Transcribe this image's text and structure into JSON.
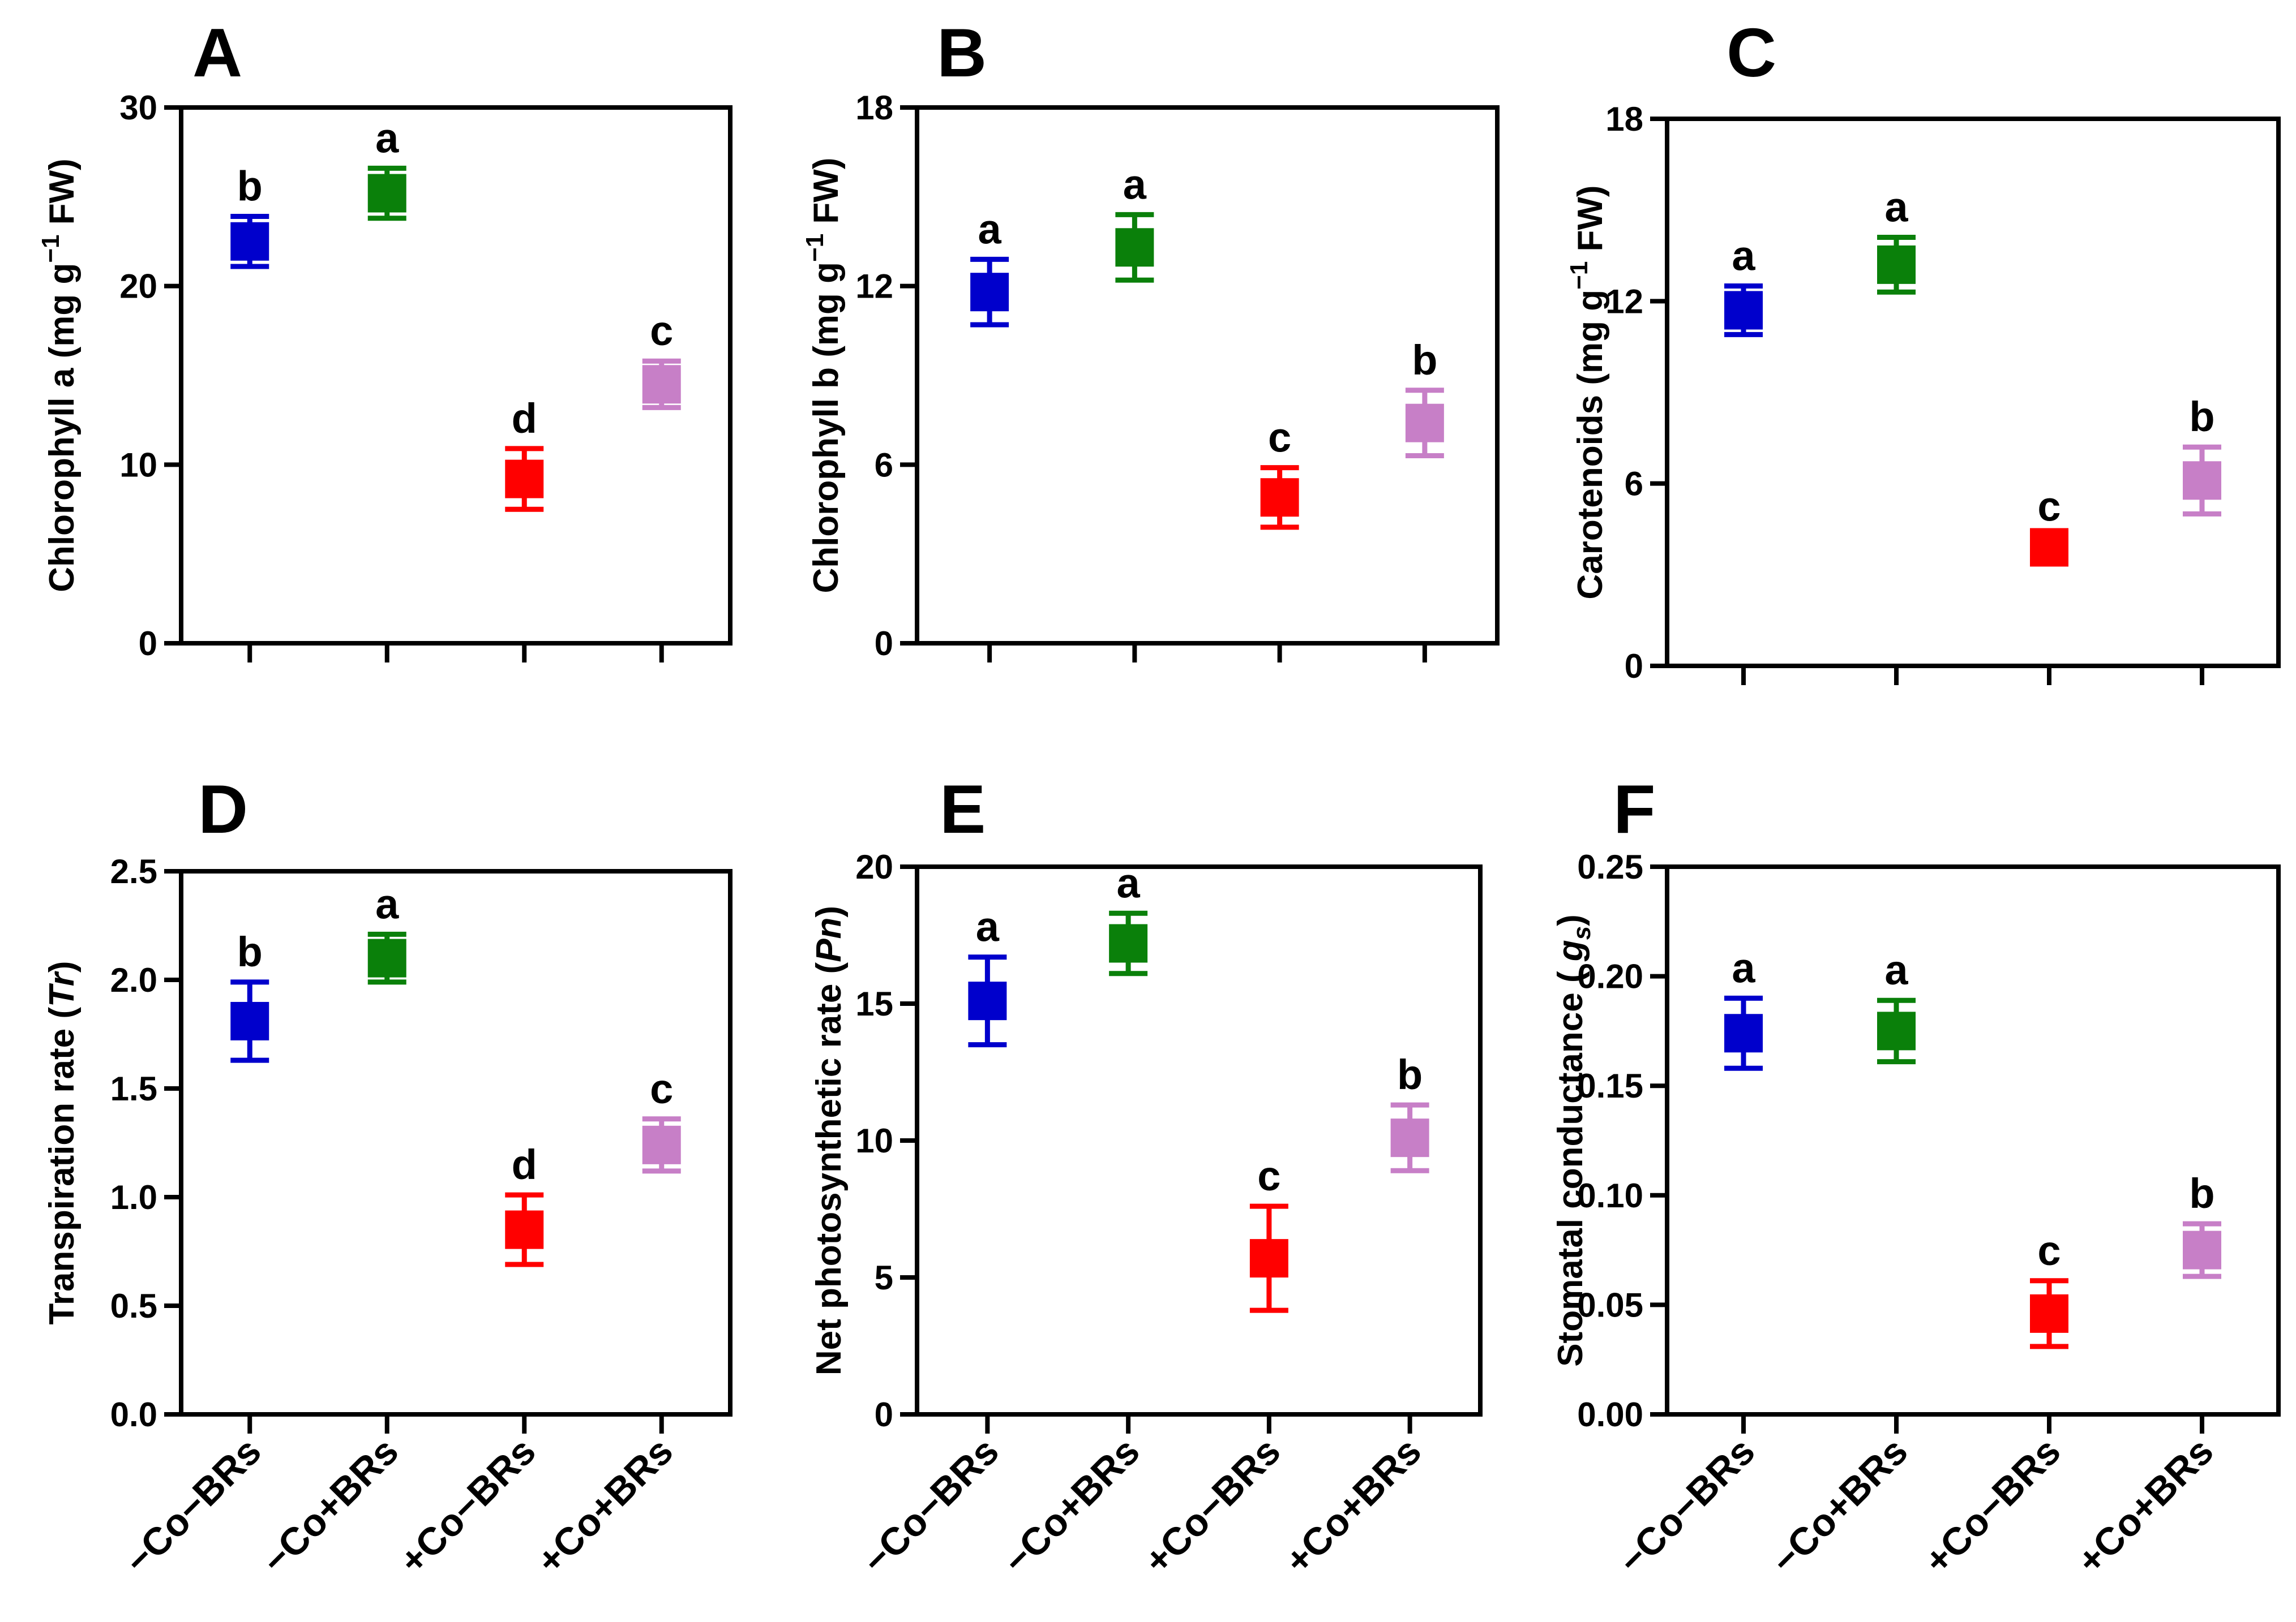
{
  "colors": {
    "-Co-BRs": "#0000cc",
    "-Co+BRs": "#0a800a",
    "+Co-BRs": "#ff0000",
    "+Co+BRs": "#c77fc7"
  },
  "chart_data": [
    {
      "panel": "A",
      "type": "scatter",
      "ylabel": "Chlorophyll a (mg g⁻¹ FW)",
      "ylim": [
        0,
        30
      ],
      "yticks": [
        "0",
        "10",
        "20",
        "30"
      ],
      "categories": [
        "−Co−BRs",
        "−Co+BRs",
        "+Co−BRs",
        "+Co+BRs"
      ],
      "show_category_labels": false,
      "values": [
        22.5,
        25.2,
        9.2,
        14.5
      ],
      "errors": [
        1.4,
        1.4,
        1.7,
        1.3
      ],
      "letters": [
        "b",
        "a",
        "d",
        "c"
      ]
    },
    {
      "panel": "B",
      "type": "scatter",
      "ylabel": "Chlorophyll b (mg g⁻¹ FW)",
      "ylim": [
        0,
        18
      ],
      "yticks": [
        "0",
        "6",
        "12",
        "18"
      ],
      "categories": [
        "−Co−BRs",
        "−Co+BRs",
        "+Co−BRs",
        "+Co+BRs"
      ],
      "show_category_labels": false,
      "values": [
        11.8,
        13.3,
        4.9,
        7.4
      ],
      "errors": [
        1.1,
        1.1,
        1.0,
        1.1
      ],
      "letters": [
        "a",
        "a",
        "c",
        "b"
      ]
    },
    {
      "panel": "C",
      "type": "scatter",
      "ylabel": "Carotenoids (mg g⁻¹ FW)",
      "ylim": [
        0,
        18
      ],
      "yticks": [
        "0",
        "6",
        "12",
        "18"
      ],
      "categories": [
        "−Co−BRs",
        "−Co+BRs",
        "+Co−BRs",
        "+Co+BRs"
      ],
      "show_category_labels": false,
      "values": [
        11.7,
        13.2,
        3.9,
        6.1
      ],
      "errors": [
        0.8,
        0.9,
        0.35,
        1.1
      ],
      "letters": [
        "a",
        "a",
        "c",
        "b"
      ]
    },
    {
      "panel": "D",
      "type": "scatter",
      "ylabel": "Transpiration rate (Tr)",
      "ylim": [
        0,
        2.5
      ],
      "yticks": [
        "0.0",
        "0.5",
        "1.0",
        "1.5",
        "2.0",
        "2.5"
      ],
      "categories": [
        "−Co−BRs",
        "−Co+BRs",
        "+Co−BRs",
        "+Co+BRs"
      ],
      "show_category_labels": true,
      "values": [
        1.81,
        2.1,
        0.85,
        1.24
      ],
      "errors": [
        0.18,
        0.11,
        0.16,
        0.12
      ],
      "letters": [
        "b",
        "a",
        "d",
        "c"
      ]
    },
    {
      "panel": "E",
      "type": "scatter",
      "ylabel": "Net photosynthetic rate (Pn)",
      "ylim": [
        0,
        20
      ],
      "yticks": [
        "0",
        "5",
        "10",
        "15",
        "20"
      ],
      "categories": [
        "−Co−BRs",
        "−Co+BRs",
        "+Co−BRs",
        "+Co+BRs"
      ],
      "show_category_labels": true,
      "values": [
        15.1,
        17.2,
        5.7,
        10.1
      ],
      "errors": [
        1.6,
        1.1,
        1.9,
        1.2
      ],
      "letters": [
        "a",
        "a",
        "c",
        "b"
      ]
    },
    {
      "panel": "F",
      "type": "scatter",
      "ylabel": "Stomatal conductance ( gs)",
      "ylim": [
        0,
        0.25
      ],
      "yticks": [
        "0.00",
        "0.05",
        "0.10",
        "0.15",
        "0.20",
        "0.25"
      ],
      "categories": [
        "−Co−BRs",
        "−Co+BRs",
        "+Co−BRs",
        "+Co+BRs"
      ],
      "show_category_labels": true,
      "values": [
        0.174,
        0.175,
        0.046,
        0.075
      ],
      "errors": [
        0.016,
        0.014,
        0.015,
        0.012
      ],
      "letters": [
        "a",
        "a",
        "c",
        "b"
      ]
    }
  ]
}
